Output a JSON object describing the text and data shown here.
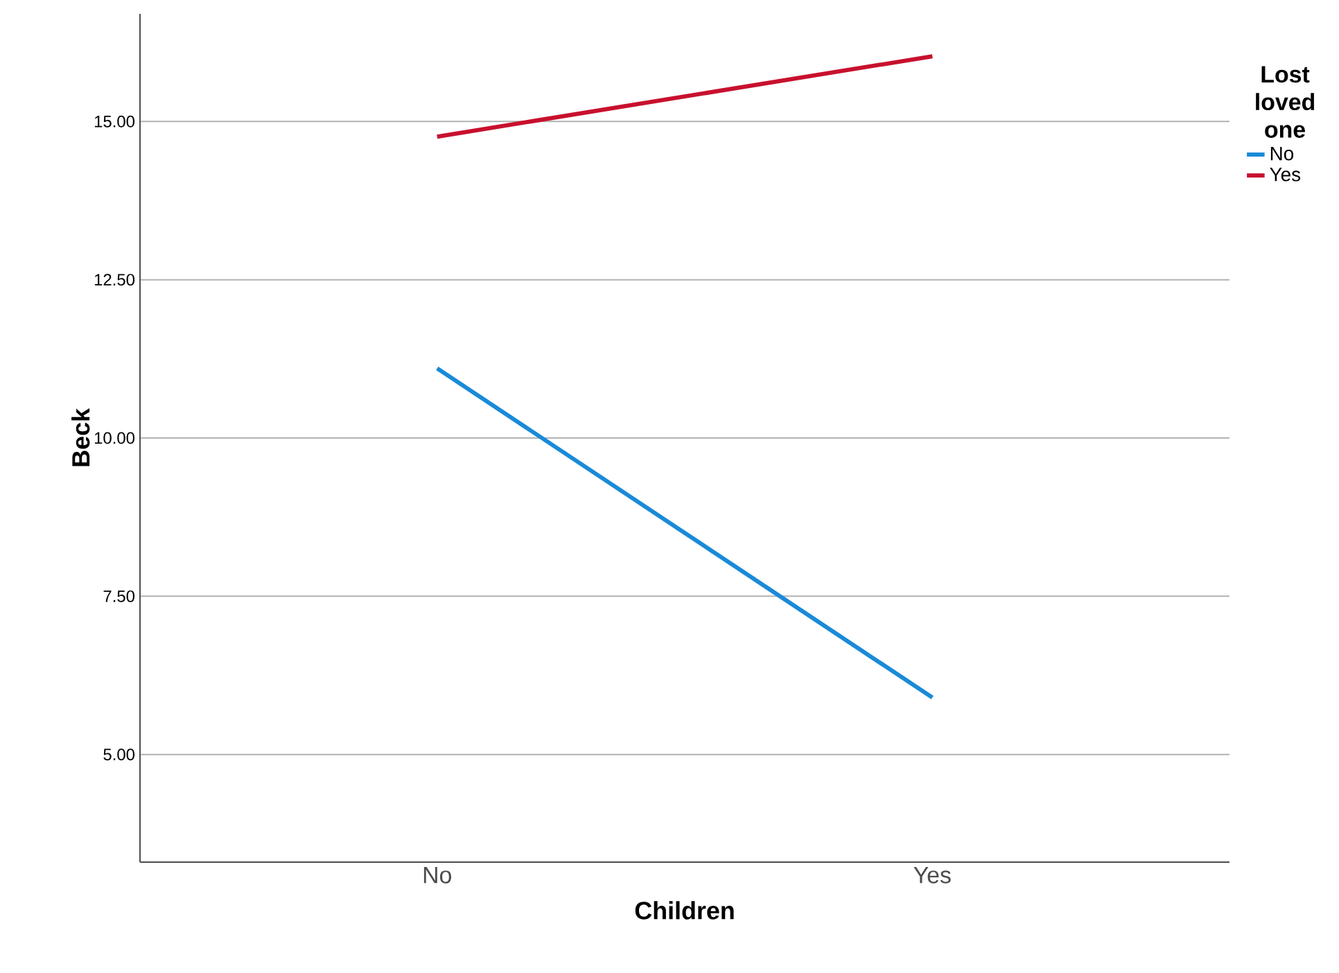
{
  "chart_data": {
    "type": "line",
    "xlabel": "Children",
    "ylabel": "Beck",
    "legend_title": "Lost loved one",
    "categories": [
      "No",
      "Yes"
    ],
    "series": [
      {
        "name": "No",
        "color": "#1a8ad8",
        "values": [
          11.1,
          5.9
        ]
      },
      {
        "name": "Yes",
        "color": "#c8102e",
        "values": [
          14.76,
          16.03
        ]
      }
    ],
    "ylim": [
      3.3,
      16.7
    ],
    "yticks": [
      {
        "value": 5,
        "label": "5.00"
      },
      {
        "value": 7.5,
        "label": "7.50"
      },
      {
        "value": 10,
        "label": "10.00"
      },
      {
        "value": 12.5,
        "label": "12.50"
      },
      {
        "value": 15,
        "label": "15.00"
      }
    ],
    "grid": "y",
    "legend": "top right",
    "marker": "none",
    "line_style": "solid"
  }
}
